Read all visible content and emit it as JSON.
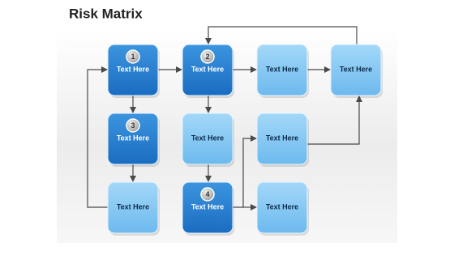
{
  "header": {
    "title": "Risk Matrix"
  },
  "nodes": [
    {
      "label": "Text Here",
      "badge": "1"
    },
    {
      "label": "Text Here",
      "badge": "2"
    },
    {
      "label": "Text Here"
    },
    {
      "label": "Text Here"
    },
    {
      "label": "Text Here",
      "badge": "3"
    },
    {
      "label": "Text Here"
    },
    {
      "label": "Text Here"
    },
    {
      "label": "Text Here"
    },
    {
      "label": "Text Here",
      "badge": "4"
    },
    {
      "label": "Text Here"
    }
  ]
}
